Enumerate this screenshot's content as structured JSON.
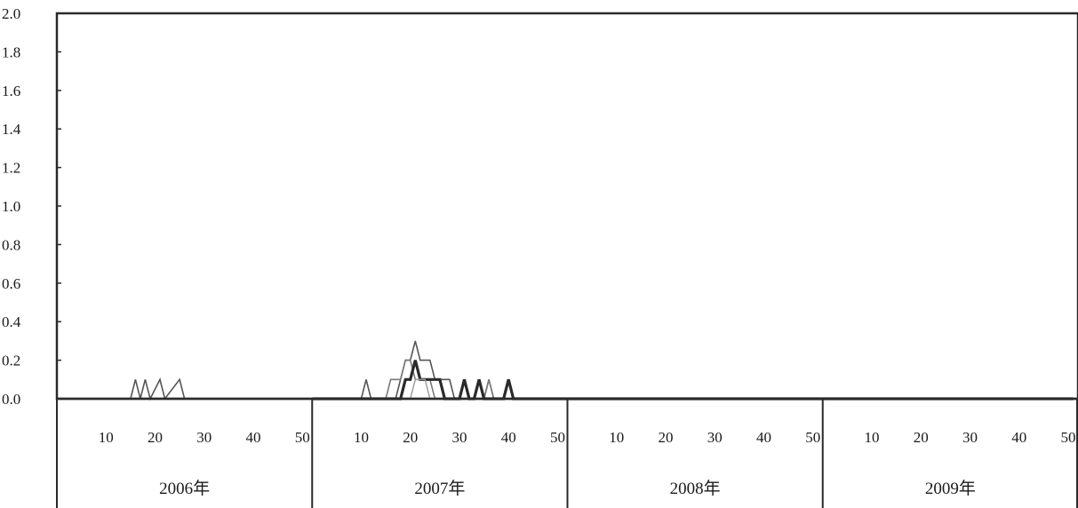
{
  "chart_data": {
    "type": "line",
    "title": "",
    "xlabel": "",
    "ylabel": "",
    "ylim": [
      0,
      2.0
    ],
    "y_ticks": [
      "0.0",
      "0.2",
      "0.4",
      "0.6",
      "0.8",
      "1.0",
      "1.2",
      "1.4",
      "1.6",
      "1.8",
      "2.0"
    ],
    "week_ticks": [
      "10",
      "20",
      "30",
      "40",
      "50"
    ],
    "years": [
      "2006年",
      "2007年",
      "2008年",
      "2009年"
    ],
    "x_unit": "week",
    "weeks_per_year": 52,
    "grid": false,
    "legend": "none",
    "series": [
      {
        "color": "#555555",
        "width": 1.6,
        "points": [
          [
            0,
            0
          ],
          [
            15,
            0
          ],
          [
            16,
            0.1
          ],
          [
            17,
            0
          ],
          [
            18,
            0.1
          ],
          [
            19,
            0
          ],
          [
            21,
            0.1
          ],
          [
            22,
            0
          ],
          [
            25,
            0.1
          ],
          [
            26,
            0
          ],
          [
            52,
            0
          ],
          [
            62,
            0
          ],
          [
            63,
            0.1
          ],
          [
            64,
            0
          ],
          [
            69,
            0
          ],
          [
            70,
            0.1
          ],
          [
            71,
            0.2
          ],
          [
            72,
            0.2
          ],
          [
            73,
            0.3
          ],
          [
            74,
            0.2
          ],
          [
            75,
            0.2
          ],
          [
            76,
            0.2
          ],
          [
            77,
            0.1
          ],
          [
            80,
            0.1
          ],
          [
            81,
            0
          ],
          [
            85,
            0
          ],
          [
            86,
            0.1
          ],
          [
            87,
            0
          ],
          [
            88,
            0.1
          ],
          [
            89,
            0
          ],
          [
            207,
            0
          ]
        ]
      },
      {
        "color": "#7a7a7a",
        "width": 1.6,
        "points": [
          [
            52,
            0
          ],
          [
            67,
            0
          ],
          [
            68,
            0.1
          ],
          [
            70,
            0.1
          ],
          [
            71,
            0.2
          ],
          [
            72,
            0.2
          ],
          [
            73,
            0.1
          ],
          [
            76,
            0.1
          ],
          [
            77,
            0
          ],
          [
            82,
            0
          ],
          [
            83,
            0.1
          ],
          [
            84,
            0
          ],
          [
            87,
            0
          ],
          [
            88,
            0.1
          ],
          [
            89,
            0
          ],
          [
            207,
            0
          ]
        ]
      },
      {
        "color": "#2a2a2a",
        "width": 3.2,
        "points": [
          [
            52,
            0
          ],
          [
            70,
            0
          ],
          [
            71,
            0.1
          ],
          [
            72,
            0.1
          ],
          [
            73,
            0.2
          ],
          [
            74,
            0.1
          ],
          [
            75,
            0.1
          ],
          [
            78,
            0.1
          ],
          [
            79,
            0
          ],
          [
            82,
            0
          ],
          [
            83,
            0.1
          ],
          [
            84,
            0
          ],
          [
            85,
            0
          ],
          [
            86,
            0.1
          ],
          [
            87,
            0
          ],
          [
            91,
            0
          ],
          [
            92,
            0.1
          ],
          [
            93,
            0
          ],
          [
            207,
            0
          ]
        ]
      },
      {
        "color": "#9a9a9a",
        "width": 1.4,
        "points": [
          [
            52,
            0
          ],
          [
            72,
            0
          ],
          [
            73,
            0.1
          ],
          [
            75,
            0.1
          ],
          [
            76,
            0
          ],
          [
            207,
            0
          ]
        ]
      }
    ]
  }
}
